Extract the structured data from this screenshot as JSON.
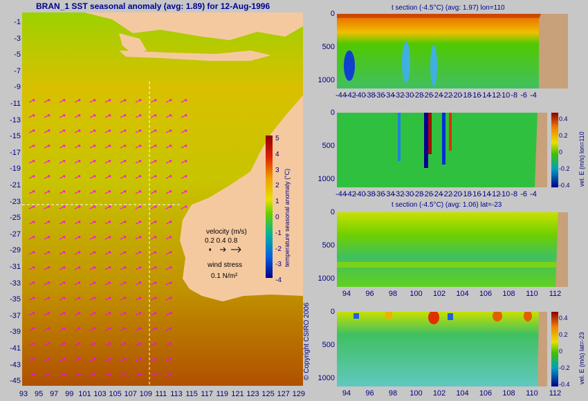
{
  "map": {
    "title": "BRAN_1  SST seasonal anomaly  (avg: 1.89)  for 12-Aug-1996",
    "y_ticks": [
      "-1",
      "-3",
      "-5",
      "-7",
      "-9",
      "-11",
      "-13",
      "-15",
      "-17",
      "-19",
      "-21",
      "-23",
      "-25",
      "-27",
      "-29",
      "-31",
      "-33",
      "-35",
      "-37",
      "-39",
      "-41",
      "-43",
      "-45"
    ],
    "x_ticks": [
      "93",
      "95",
      "97",
      "99",
      "101",
      "103",
      "105",
      "107",
      "109",
      "111",
      "113",
      "115",
      "117",
      "119",
      "121",
      "123",
      "125",
      "127",
      "129"
    ],
    "colorbar": {
      "label": "temperature seasonal anomaly (°C)",
      "ticks": [
        "5",
        "4",
        "3",
        "2",
        "1",
        "0",
        "-1",
        "-2",
        "-3",
        "-4"
      ]
    },
    "legend": {
      "velocity_label": "velocity (m/s)",
      "velocity_scale": "0.2 0.4 0.8",
      "wind_label": "wind stress",
      "wind_scale": "0.1 N/m²"
    },
    "copyright": "© Copyright CSIRO 2006"
  },
  "panels": {
    "p1": {
      "title": "t section (-4.5°C) (avg: 1.97) lon=110",
      "x_ticks": [
        "-44",
        "-42",
        "-40",
        "-38",
        "-36",
        "-34",
        "-32",
        "-30",
        "-28",
        "-26",
        "-24",
        "-22",
        "-20",
        "-18",
        "-16",
        "-14",
        "-12",
        "-10",
        "-8",
        "-6",
        "-4"
      ],
      "y_ticks": [
        "0",
        "500",
        "1000"
      ]
    },
    "p2": {
      "side_label": "vel. E (m/s) lon=110",
      "cb_ticks": [
        "0.4",
        "0.2",
        "0",
        "-0.2",
        "-0.4"
      ],
      "x_ticks": [
        "-44",
        "-42",
        "-40",
        "-38",
        "-36",
        "-34",
        "-32",
        "-30",
        "-28",
        "-26",
        "-24",
        "-22",
        "-20",
        "-18",
        "-16",
        "-14",
        "-12",
        "-10",
        "-8",
        "-6",
        "-4"
      ],
      "y_ticks": [
        "0",
        "500",
        "1000"
      ]
    },
    "p3": {
      "title": "t section (-4.5°C) (avg: 1.06) lat=-23",
      "x_ticks": [
        "94",
        "96",
        "98",
        "100",
        "102",
        "104",
        "106",
        "108",
        "110",
        "112"
      ],
      "y_ticks": [
        "0",
        "500",
        "1000"
      ]
    },
    "p4": {
      "side_label": "vel. E (m/s) lat=-23",
      "cb_ticks": [
        "0.4",
        "0.2",
        "0",
        "-0.2",
        "-0.4"
      ],
      "x_ticks": [
        "94",
        "96",
        "98",
        "100",
        "102",
        "104",
        "106",
        "108",
        "110",
        "112"
      ],
      "y_ticks": [
        "0",
        "500",
        "1000"
      ]
    }
  },
  "colors": {
    "land": "#f5c9a0",
    "section_land": "#c8a07a",
    "label": "#000080",
    "title": "#00008b",
    "marker": "#ffffff",
    "vectors": "#ff00ff"
  }
}
